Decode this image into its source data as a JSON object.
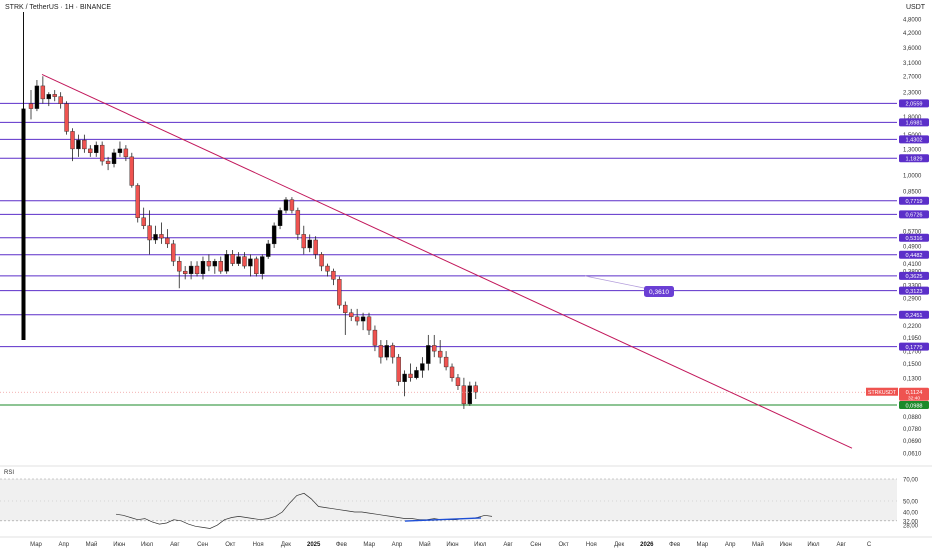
{
  "header": {
    "symbol": "STRK / TetherUS · 1H · BINANCE",
    "currency": "USDT"
  },
  "colors": {
    "up": "#26a69a",
    "down": "#ef5350",
    "level": "#5b2fc9",
    "trend": "#c2185b",
    "support": "#1b8a2a",
    "rsi": "#333333",
    "divergence": "#1e4fd6"
  },
  "axis": {
    "y_ticks": [
      "4,8000",
      "4,2000",
      "3,6000",
      "3,1000",
      "2,7000",
      "2,3000",
      "2,0559",
      "1,8000",
      "1,6981",
      "1,5000",
      "1,4302",
      "1,3000",
      "1,1829",
      "1,0000",
      "0,8500",
      "0,7719",
      "0,6726",
      "0,5700",
      "0,5316",
      "0,4900",
      "0,4482",
      "0,4100",
      "0,3800",
      "0,3625",
      "0,3300",
      "0,3123",
      "0,2900",
      "0,2451",
      "0,2200",
      "0,1950",
      "0,1779",
      "0,1700",
      "0,1500",
      "0,1300",
      "0,1124",
      "0,0988",
      "0,0880",
      "0,0780",
      "0,0690",
      "0,0610"
    ],
    "x_ticks": [
      "Мар",
      "Апр",
      "Май",
      "Июн",
      "Июл",
      "Авг",
      "Сен",
      "Окт",
      "Ноя",
      "Дек",
      "2025",
      "Фев",
      "Мар",
      "Апр",
      "Май",
      "Июн",
      "Июл",
      "Авг",
      "Сен",
      "Окт",
      "Ноя",
      "Дек",
      "2026",
      "Фев",
      "Мар",
      "Апр",
      "Май",
      "Июн",
      "Июл",
      "Авг",
      "С"
    ]
  },
  "levels": [
    "2,0559",
    "1,6981",
    "1,4302",
    "1,1829",
    "0,7719",
    "0,6726",
    "0,5316",
    "0,4482",
    "0,3625",
    "0,3123",
    "0,2451",
    "0,1779"
  ],
  "support_level": "0,0988",
  "price_tag": {
    "symbol": "STRKUSDT",
    "price": "0,1124",
    "countdown": "32:40"
  },
  "annotation": "0,3610",
  "rsi": {
    "label": "RSI",
    "ticks": [
      "70,00",
      "50,00",
      "40,00",
      "32,00",
      "28,00"
    ]
  },
  "chart_data": {
    "type": "candlestick",
    "title": "STRK / TetherUS · 1H · BINANCE",
    "scale": "log",
    "ylim": [
      0.058,
      5.0
    ],
    "x_range": [
      "Мар",
      "С"
    ],
    "grid": false,
    "candles": [
      {
        "o": 2.05,
        "h": 2.35,
        "l": 1.75,
        "c": 1.95
      },
      {
        "o": 1.95,
        "h": 2.6,
        "l": 1.9,
        "c": 2.45
      },
      {
        "o": 2.45,
        "h": 2.7,
        "l": 2.05,
        "c": 2.15
      },
      {
        "o": 2.15,
        "h": 2.3,
        "l": 2.0,
        "c": 2.25
      },
      {
        "o": 2.25,
        "h": 2.35,
        "l": 2.1,
        "c": 2.2
      },
      {
        "o": 2.2,
        "h": 2.3,
        "l": 1.95,
        "c": 2.05
      },
      {
        "o": 2.05,
        "h": 2.1,
        "l": 1.5,
        "c": 1.55
      },
      {
        "o": 1.55,
        "h": 1.6,
        "l": 1.15,
        "c": 1.3
      },
      {
        "o": 1.3,
        "h": 1.5,
        "l": 1.2,
        "c": 1.42
      },
      {
        "o": 1.42,
        "h": 1.5,
        "l": 1.25,
        "c": 1.3
      },
      {
        "o": 1.3,
        "h": 1.35,
        "l": 1.2,
        "c": 1.25
      },
      {
        "o": 1.25,
        "h": 1.4,
        "l": 1.2,
        "c": 1.35
      },
      {
        "o": 1.35,
        "h": 1.4,
        "l": 1.1,
        "c": 1.15
      },
      {
        "o": 1.15,
        "h": 1.2,
        "l": 1.05,
        "c": 1.12
      },
      {
        "o": 1.12,
        "h": 1.3,
        "l": 1.08,
        "c": 1.25
      },
      {
        "o": 1.25,
        "h": 1.4,
        "l": 1.2,
        "c": 1.3
      },
      {
        "o": 1.3,
        "h": 1.35,
        "l": 1.15,
        "c": 1.2
      },
      {
        "o": 1.2,
        "h": 1.25,
        "l": 0.88,
        "c": 0.9
      },
      {
        "o": 0.9,
        "h": 0.92,
        "l": 0.62,
        "c": 0.65
      },
      {
        "o": 0.65,
        "h": 0.72,
        "l": 0.58,
        "c": 0.6
      },
      {
        "o": 0.6,
        "h": 0.7,
        "l": 0.45,
        "c": 0.52
      },
      {
        "o": 0.52,
        "h": 0.6,
        "l": 0.5,
        "c": 0.55
      },
      {
        "o": 0.55,
        "h": 0.62,
        "l": 0.5,
        "c": 0.53
      },
      {
        "o": 0.53,
        "h": 0.58,
        "l": 0.48,
        "c": 0.5
      },
      {
        "o": 0.5,
        "h": 0.52,
        "l": 0.4,
        "c": 0.42
      },
      {
        "o": 0.42,
        "h": 0.44,
        "l": 0.32,
        "c": 0.38
      },
      {
        "o": 0.38,
        "h": 0.4,
        "l": 0.35,
        "c": 0.37
      },
      {
        "o": 0.37,
        "h": 0.42,
        "l": 0.35,
        "c": 0.4
      },
      {
        "o": 0.4,
        "h": 0.42,
        "l": 0.36,
        "c": 0.37
      },
      {
        "o": 0.37,
        "h": 0.44,
        "l": 0.35,
        "c": 0.42
      },
      {
        "o": 0.42,
        "h": 0.45,
        "l": 0.38,
        "c": 0.4
      },
      {
        "o": 0.4,
        "h": 0.43,
        "l": 0.37,
        "c": 0.42
      },
      {
        "o": 0.42,
        "h": 0.44,
        "l": 0.37,
        "c": 0.38
      },
      {
        "o": 0.38,
        "h": 0.47,
        "l": 0.37,
        "c": 0.45
      },
      {
        "o": 0.45,
        "h": 0.47,
        "l": 0.4,
        "c": 0.41
      },
      {
        "o": 0.41,
        "h": 0.46,
        "l": 0.4,
        "c": 0.44
      },
      {
        "o": 0.44,
        "h": 0.46,
        "l": 0.39,
        "c": 0.4
      },
      {
        "o": 0.4,
        "h": 0.45,
        "l": 0.36,
        "c": 0.43
      },
      {
        "o": 0.43,
        "h": 0.44,
        "l": 0.36,
        "c": 0.37
      },
      {
        "o": 0.37,
        "h": 0.45,
        "l": 0.35,
        "c": 0.44
      },
      {
        "o": 0.44,
        "h": 0.52,
        "l": 0.43,
        "c": 0.5
      },
      {
        "o": 0.5,
        "h": 0.62,
        "l": 0.48,
        "c": 0.6
      },
      {
        "o": 0.6,
        "h": 0.72,
        "l": 0.58,
        "c": 0.7
      },
      {
        "o": 0.7,
        "h": 0.8,
        "l": 0.68,
        "c": 0.78
      },
      {
        "o": 0.78,
        "h": 0.8,
        "l": 0.68,
        "c": 0.7
      },
      {
        "o": 0.7,
        "h": 0.72,
        "l": 0.52,
        "c": 0.55
      },
      {
        "o": 0.55,
        "h": 0.6,
        "l": 0.45,
        "c": 0.48
      },
      {
        "o": 0.48,
        "h": 0.55,
        "l": 0.46,
        "c": 0.52
      },
      {
        "o": 0.52,
        "h": 0.54,
        "l": 0.43,
        "c": 0.45
      },
      {
        "o": 0.45,
        "h": 0.46,
        "l": 0.38,
        "c": 0.4
      },
      {
        "o": 0.4,
        "h": 0.41,
        "l": 0.36,
        "c": 0.38
      },
      {
        "o": 0.38,
        "h": 0.39,
        "l": 0.33,
        "c": 0.35
      },
      {
        "o": 0.35,
        "h": 0.36,
        "l": 0.26,
        "c": 0.27
      },
      {
        "o": 0.27,
        "h": 0.28,
        "l": 0.2,
        "c": 0.25
      },
      {
        "o": 0.25,
        "h": 0.26,
        "l": 0.23,
        "c": 0.24
      },
      {
        "o": 0.24,
        "h": 0.26,
        "l": 0.22,
        "c": 0.23
      },
      {
        "o": 0.23,
        "h": 0.25,
        "l": 0.21,
        "c": 0.24
      },
      {
        "o": 0.24,
        "h": 0.25,
        "l": 0.2,
        "c": 0.21
      },
      {
        "o": 0.21,
        "h": 0.22,
        "l": 0.17,
        "c": 0.18
      },
      {
        "o": 0.18,
        "h": 0.19,
        "l": 0.15,
        "c": 0.16
      },
      {
        "o": 0.16,
        "h": 0.19,
        "l": 0.155,
        "c": 0.18
      },
      {
        "o": 0.18,
        "h": 0.185,
        "l": 0.15,
        "c": 0.16
      },
      {
        "o": 0.16,
        "h": 0.165,
        "l": 0.12,
        "c": 0.125
      },
      {
        "o": 0.125,
        "h": 0.14,
        "l": 0.108,
        "c": 0.135
      },
      {
        "o": 0.135,
        "h": 0.15,
        "l": 0.125,
        "c": 0.13
      },
      {
        "o": 0.13,
        "h": 0.145,
        "l": 0.128,
        "c": 0.14
      },
      {
        "o": 0.14,
        "h": 0.16,
        "l": 0.13,
        "c": 0.15
      },
      {
        "o": 0.15,
        "h": 0.2,
        "l": 0.14,
        "c": 0.18
      },
      {
        "o": 0.18,
        "h": 0.2,
        "l": 0.16,
        "c": 0.17
      },
      {
        "o": 0.17,
        "h": 0.19,
        "l": 0.15,
        "c": 0.16
      },
      {
        "o": 0.16,
        "h": 0.17,
        "l": 0.14,
        "c": 0.145
      },
      {
        "o": 0.145,
        "h": 0.15,
        "l": 0.125,
        "c": 0.13
      },
      {
        "o": 0.13,
        "h": 0.135,
        "l": 0.115,
        "c": 0.12
      },
      {
        "o": 0.12,
        "h": 0.13,
        "l": 0.095,
        "c": 0.1
      },
      {
        "o": 0.1,
        "h": 0.125,
        "l": 0.098,
        "c": 0.12
      },
      {
        "o": 0.12,
        "h": 0.125,
        "l": 0.105,
        "c": 0.1124
      }
    ],
    "levels": [
      2.0559,
      1.6981,
      1.4302,
      1.1829,
      0.7719,
      0.6726,
      0.5316,
      0.4482,
      0.3625,
      0.3123,
      0.2451,
      0.1779
    ],
    "support": 0.0988,
    "last_price": 0.1124,
    "trendline": [
      {
        "x": "Мар",
        "y": 2.75
      },
      {
        "x": "Авг",
        "y": 0.064
      }
    ],
    "rsi_values": [
      38,
      37,
      35,
      33,
      34,
      31,
      29,
      30,
      33,
      32,
      29,
      27,
      26,
      25,
      28,
      33,
      35,
      36,
      35,
      34,
      33,
      34,
      36,
      40,
      48,
      55,
      57,
      52,
      45,
      44,
      43,
      42,
      41,
      40,
      40,
      39,
      38,
      37,
      36,
      35,
      34,
      34,
      33,
      33,
      34,
      33,
      33,
      33,
      34,
      34,
      35,
      37,
      36
    ],
    "rsi_range": [
      20,
      80
    ],
    "rsi_bands": [
      32,
      70
    ]
  }
}
